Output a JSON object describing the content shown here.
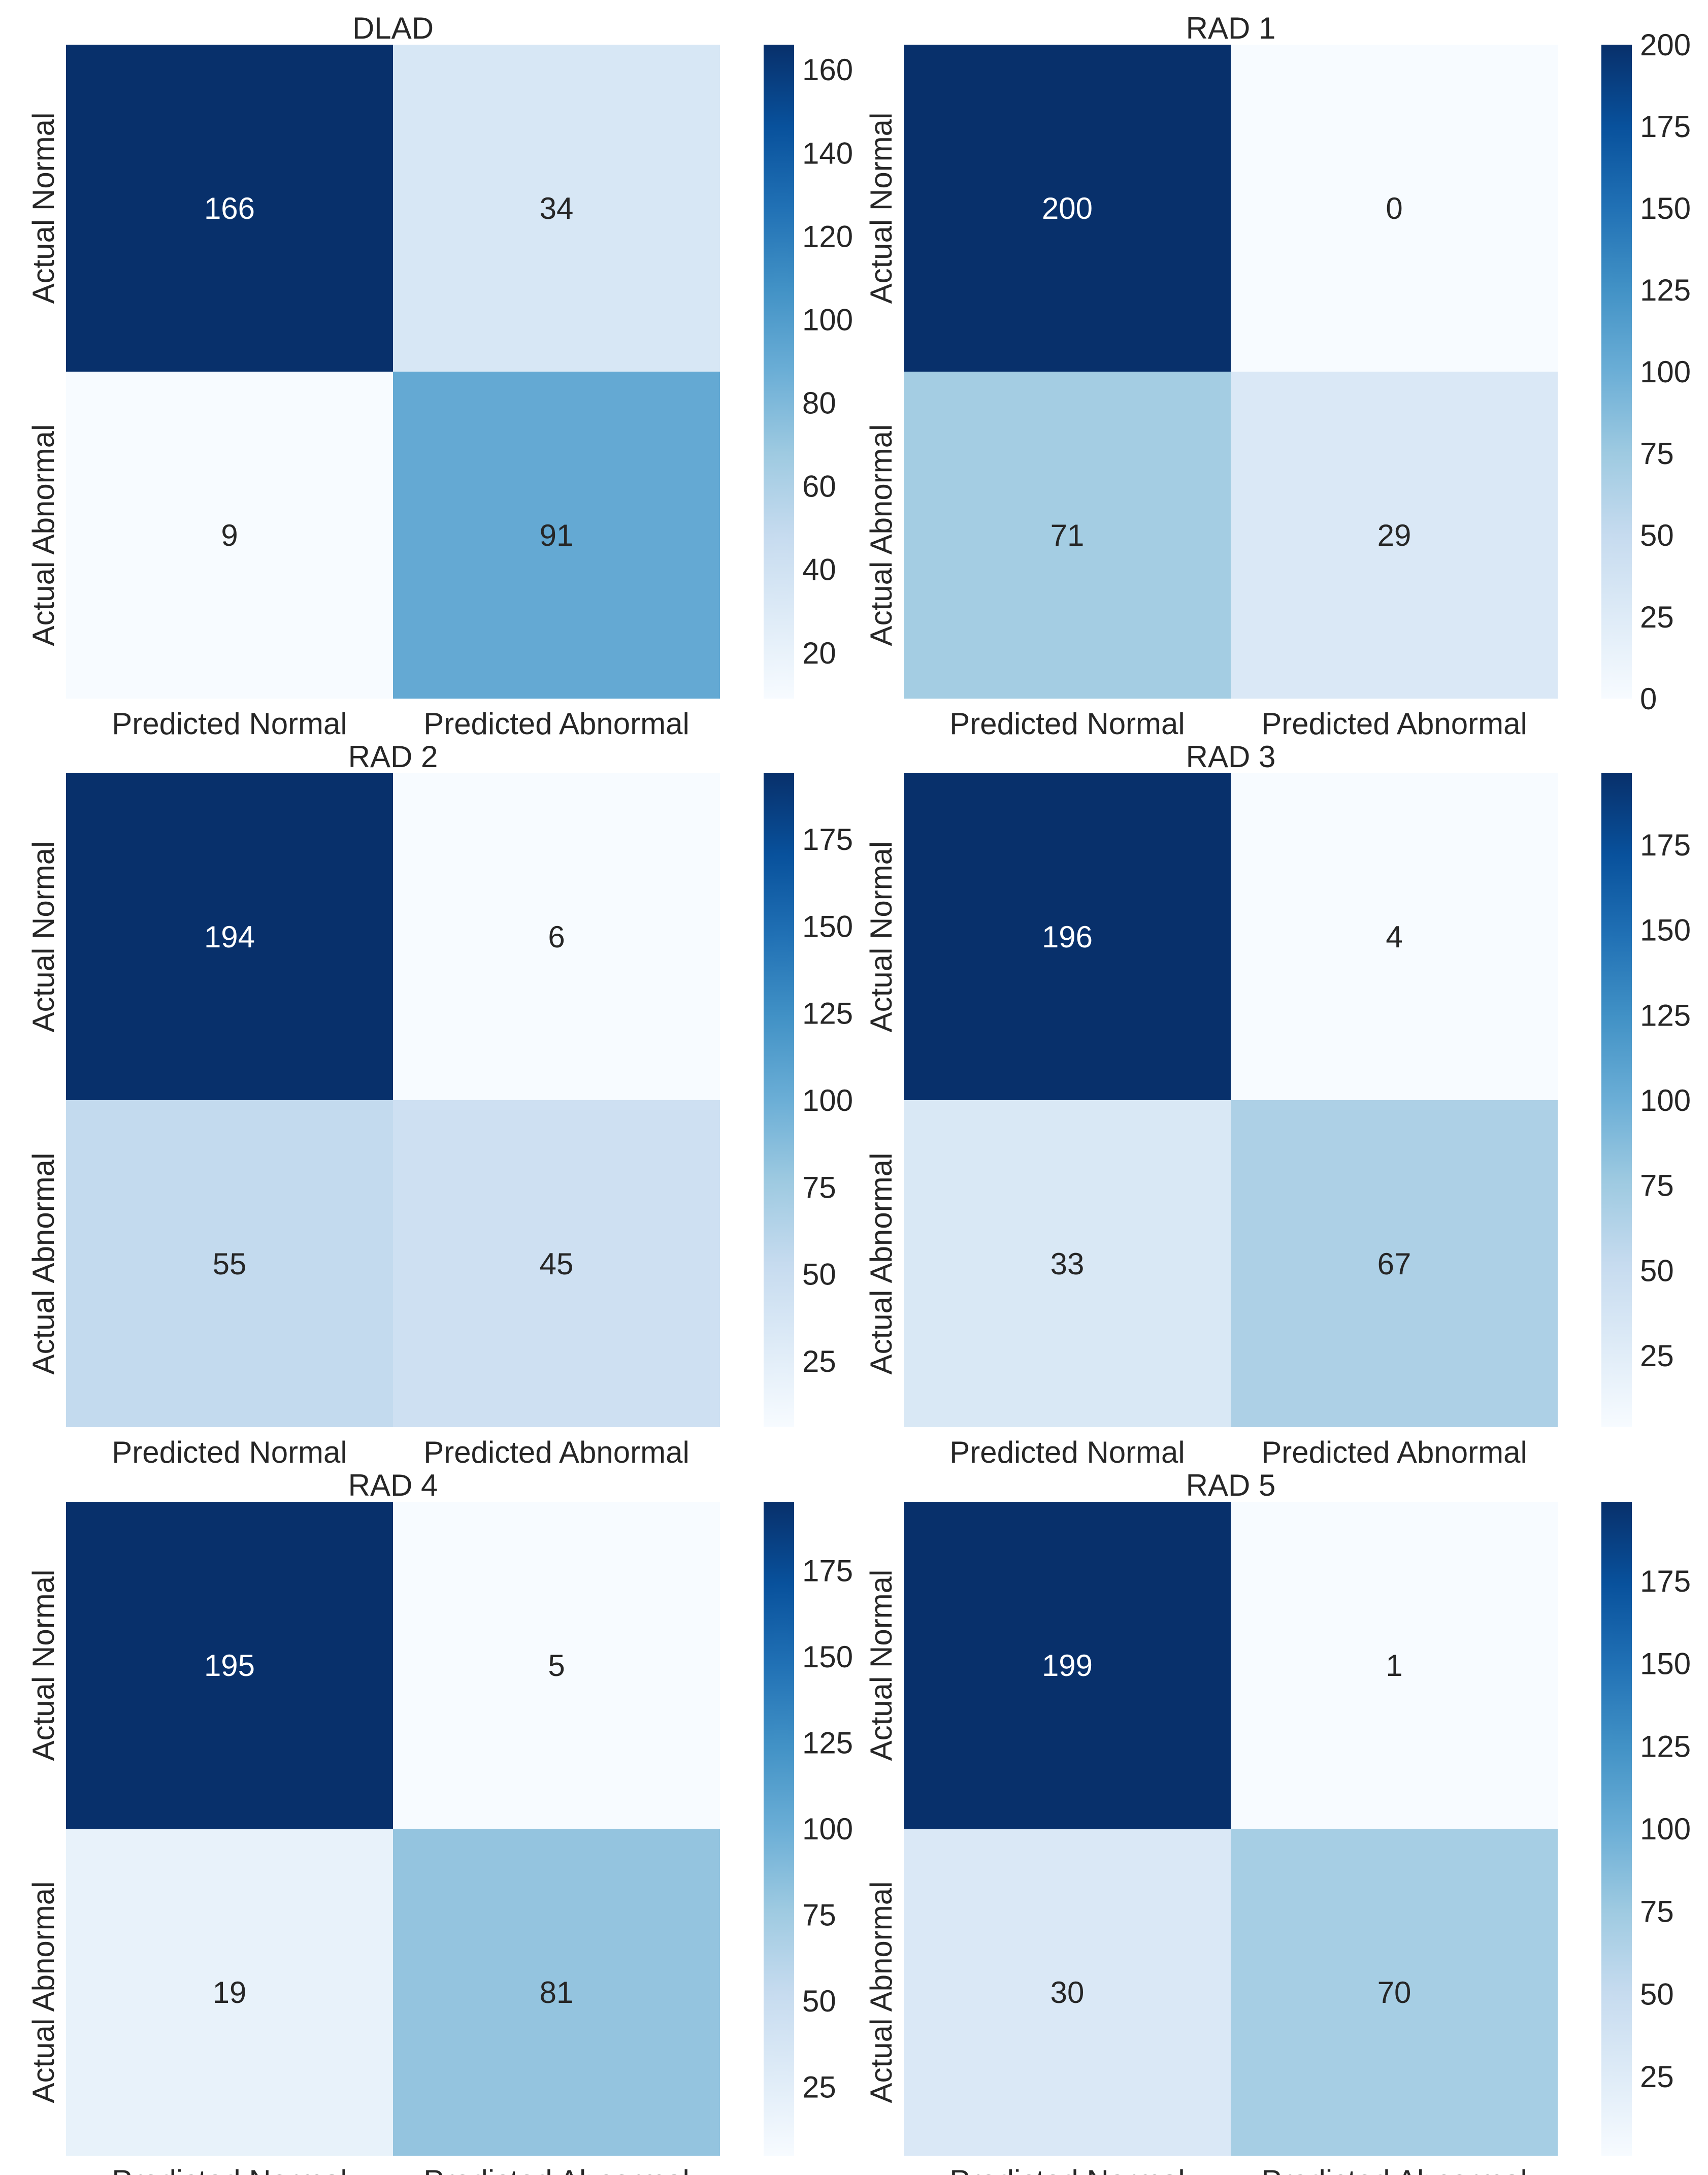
{
  "chart_data": [
    {
      "type": "heatmap",
      "title": "DLAD",
      "x_categories": [
        "Predicted Normal",
        "Predicted Abnormal"
      ],
      "y_categories": [
        "Actual Normal",
        "Actual Abnormal"
      ],
      "values": [
        [
          166,
          34
        ],
        [
          9,
          91
        ]
      ],
      "colorbar": {
        "min": 9,
        "max": 166,
        "ticks": [
          20,
          40,
          60,
          80,
          100,
          120,
          140,
          160
        ]
      }
    },
    {
      "type": "heatmap",
      "title": "RAD 1",
      "x_categories": [
        "Predicted Normal",
        "Predicted Abnormal"
      ],
      "y_categories": [
        "Actual Normal",
        "Actual Abnormal"
      ],
      "values": [
        [
          200,
          0
        ],
        [
          71,
          29
        ]
      ],
      "colorbar": {
        "min": 0,
        "max": 200,
        "ticks": [
          0,
          25,
          50,
          75,
          100,
          125,
          150,
          175,
          200
        ]
      }
    },
    {
      "type": "heatmap",
      "title": "RAD 2",
      "x_categories": [
        "Predicted Normal",
        "Predicted Abnormal"
      ],
      "y_categories": [
        "Actual Normal",
        "Actual Abnormal"
      ],
      "values": [
        [
          194,
          6
        ],
        [
          55,
          45
        ]
      ],
      "colorbar": {
        "min": 6,
        "max": 194,
        "ticks": [
          25,
          50,
          75,
          100,
          125,
          150,
          175
        ]
      }
    },
    {
      "type": "heatmap",
      "title": "RAD 3",
      "x_categories": [
        "Predicted Normal",
        "Predicted Abnormal"
      ],
      "y_categories": [
        "Actual Normal",
        "Actual Abnormal"
      ],
      "values": [
        [
          196,
          4
        ],
        [
          33,
          67
        ]
      ],
      "colorbar": {
        "min": 4,
        "max": 196,
        "ticks": [
          25,
          50,
          75,
          100,
          125,
          150,
          175
        ]
      }
    },
    {
      "type": "heatmap",
      "title": "RAD 4",
      "x_categories": [
        "Predicted Normal",
        "Predicted Abnormal"
      ],
      "y_categories": [
        "Actual Normal",
        "Actual Abnormal"
      ],
      "values": [
        [
          195,
          5
        ],
        [
          19,
          81
        ]
      ],
      "colorbar": {
        "min": 5,
        "max": 195,
        "ticks": [
          25,
          50,
          75,
          100,
          125,
          150,
          175
        ]
      }
    },
    {
      "type": "heatmap",
      "title": "RAD 5",
      "x_categories": [
        "Predicted Normal",
        "Predicted Abnormal"
      ],
      "y_categories": [
        "Actual Normal",
        "Actual Abnormal"
      ],
      "values": [
        [
          199,
          1
        ],
        [
          30,
          70
        ]
      ],
      "colorbar": {
        "min": 1,
        "max": 199,
        "ticks": [
          25,
          50,
          75,
          100,
          125,
          150,
          175
        ]
      }
    }
  ],
  "colormap": "Blues"
}
